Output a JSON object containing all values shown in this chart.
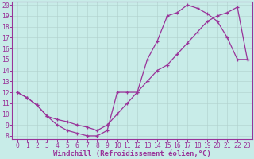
{
  "xlabel": "Windchill (Refroidissement éolien,°C)",
  "background_color": "#c8ece8",
  "grid_color": "#b0d0cc",
  "line_color": "#993399",
  "xlim_min": -0.5,
  "xlim_max": 23.5,
  "ylim_min": 7.7,
  "ylim_max": 20.3,
  "xticks": [
    0,
    1,
    2,
    3,
    4,
    5,
    6,
    7,
    8,
    9,
    10,
    11,
    12,
    13,
    14,
    15,
    16,
    17,
    18,
    19,
    20,
    21,
    22,
    23
  ],
  "yticks": [
    8,
    9,
    10,
    11,
    12,
    13,
    14,
    15,
    16,
    17,
    18,
    19,
    20
  ],
  "line1_x": [
    0,
    1,
    2,
    3,
    4,
    5,
    6,
    7,
    8,
    9,
    10,
    11,
    12,
    13,
    14,
    15,
    16,
    17,
    18,
    19,
    20,
    21,
    22,
    23
  ],
  "line1_y": [
    12,
    11.5,
    10.8,
    9.8,
    9.0,
    8.5,
    8.25,
    8.0,
    8.0,
    8.5,
    12.0,
    12.0,
    12.0,
    15.0,
    16.7,
    19.0,
    19.3,
    20.0,
    19.7,
    19.2,
    18.5,
    17.0,
    15.0,
    15.0
  ],
  "line2_x": [
    0,
    1,
    2,
    3,
    4,
    5,
    6,
    7,
    8,
    9,
    10,
    11,
    12,
    13,
    14,
    15,
    16,
    17,
    18,
    19,
    20,
    21,
    22,
    23
  ],
  "line2_y": [
    12,
    11.5,
    10.8,
    9.8,
    9.5,
    9.3,
    9.0,
    8.8,
    8.5,
    9.0,
    10.0,
    11.0,
    12.0,
    13.0,
    14.0,
    14.5,
    15.5,
    16.5,
    17.5,
    18.5,
    19.0,
    19.3,
    19.8,
    15.0
  ],
  "xlabel_fontsize": 6.5,
  "tick_fontsize": 5.8,
  "marker_size": 3.5,
  "line_width": 0.9,
  "fig_width": 3.2,
  "fig_height": 2.0,
  "dpi": 100
}
